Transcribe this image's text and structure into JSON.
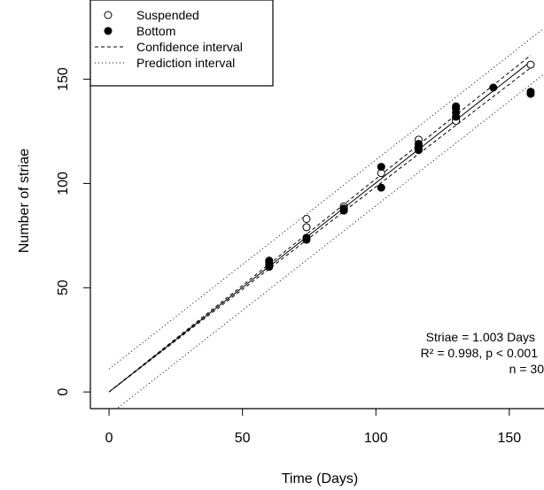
{
  "chart_data": {
    "type": "scatter",
    "title": "",
    "xlabel": "Time (Days)",
    "ylabel": "Number of striae",
    "xlim": [
      -7,
      163
    ],
    "ylim": [
      -8,
      188
    ],
    "x_ticks": [
      0,
      50,
      100,
      150
    ],
    "y_ticks": [
      0,
      50,
      100,
      150
    ],
    "x_tick_labels": [
      "0",
      "50",
      "100",
      "150"
    ],
    "y_tick_labels": [
      "0",
      "50",
      "100",
      "150"
    ],
    "grid": false,
    "legend_position": "top-left",
    "legend": [
      {
        "label": "Suspended",
        "marker": "open-circle"
      },
      {
        "label": "Bottom",
        "marker": "filled-circle"
      },
      {
        "label": "Confidence interval",
        "line": "dashed"
      },
      {
        "label": "Prediction interval",
        "line": "dotted"
      }
    ],
    "series": [
      {
        "name": "Suspended",
        "marker": "open-circle",
        "points": [
          [
            74,
            83
          ],
          [
            74,
            79
          ],
          [
            88,
            89
          ],
          [
            88,
            88
          ],
          [
            102,
            105
          ],
          [
            116,
            121
          ],
          [
            116,
            118
          ],
          [
            130,
            131
          ],
          [
            130,
            130
          ],
          [
            158,
            157
          ]
        ]
      },
      {
        "name": "Bottom",
        "marker": "filled-circle",
        "points": [
          [
            60,
            63
          ],
          [
            60,
            62
          ],
          [
            60,
            61
          ],
          [
            60,
            60
          ],
          [
            74,
            74
          ],
          [
            74,
            73
          ],
          [
            88,
            88
          ],
          [
            88,
            87
          ],
          [
            102,
            108
          ],
          [
            102,
            98
          ],
          [
            116,
            119
          ],
          [
            116,
            117
          ],
          [
            116,
            116
          ],
          [
            130,
            137
          ],
          [
            130,
            136
          ],
          [
            130,
            134
          ],
          [
            130,
            132
          ],
          [
            144,
            146
          ],
          [
            158,
            144
          ],
          [
            158,
            143
          ]
        ]
      }
    ],
    "fit": {
      "slope": 1.003,
      "intercept": 0,
      "x_range": [
        0,
        158
      ],
      "confidence_halfwidth_at_max": 3,
      "prediction_intercept_offset": 11
    },
    "annotation_lines": [
      "Striae = 1.003 Days",
      "R² = 0.998, p < 0.001",
      "n = 30"
    ]
  }
}
